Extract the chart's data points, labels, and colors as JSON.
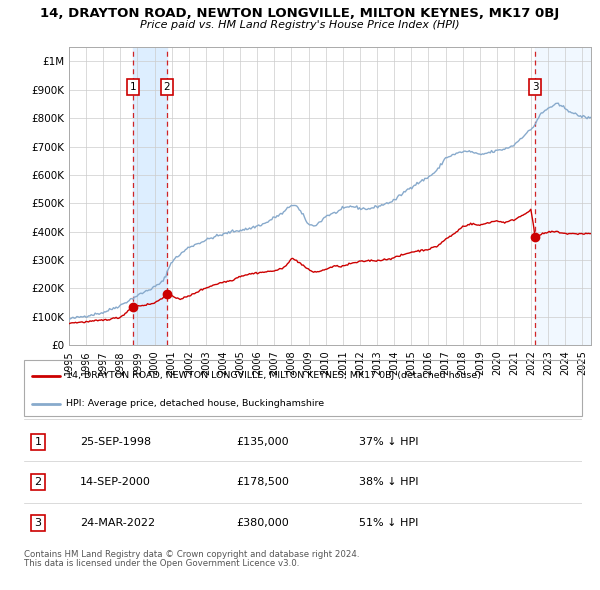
{
  "title": "14, DRAYTON ROAD, NEWTON LONGVILLE, MILTON KEYNES, MK17 0BJ",
  "subtitle": "Price paid vs. HM Land Registry's House Price Index (HPI)",
  "legend_label_red": "14, DRAYTON ROAD, NEWTON LONGVILLE, MILTON KEYNES, MK17 0BJ (detached house)",
  "legend_label_blue": "HPI: Average price, detached house, Buckinghamshire",
  "footer1": "Contains HM Land Registry data © Crown copyright and database right 2024.",
  "footer2": "This data is licensed under the Open Government Licence v3.0.",
  "transactions": [
    {
      "num": 1,
      "date": "25-SEP-1998",
      "price": 135000,
      "pct": "37% ↓ HPI",
      "year": 1998.73
    },
    {
      "num": 2,
      "date": "14-SEP-2000",
      "price": 178500,
      "pct": "38% ↓ HPI",
      "year": 2000.71
    },
    {
      "num": 3,
      "date": "24-MAR-2022",
      "price": 380000,
      "pct": "51% ↓ HPI",
      "year": 2022.23
    }
  ],
  "xmin": 1995,
  "xmax": 2025.5,
  "ymin": 0,
  "ymax": 1050000,
  "yticks": [
    0,
    100000,
    200000,
    300000,
    400000,
    500000,
    600000,
    700000,
    800000,
    900000,
    1000000
  ],
  "ytick_labels": [
    "£0",
    "£100K",
    "£200K",
    "£300K",
    "£400K",
    "£500K",
    "£600K",
    "£700K",
    "£800K",
    "£900K",
    "£1M"
  ],
  "red_color": "#cc0000",
  "blue_color": "#88aacc",
  "shade_color": "#ddeeff",
  "grid_color": "#cccccc",
  "background_color": "#ffffff"
}
